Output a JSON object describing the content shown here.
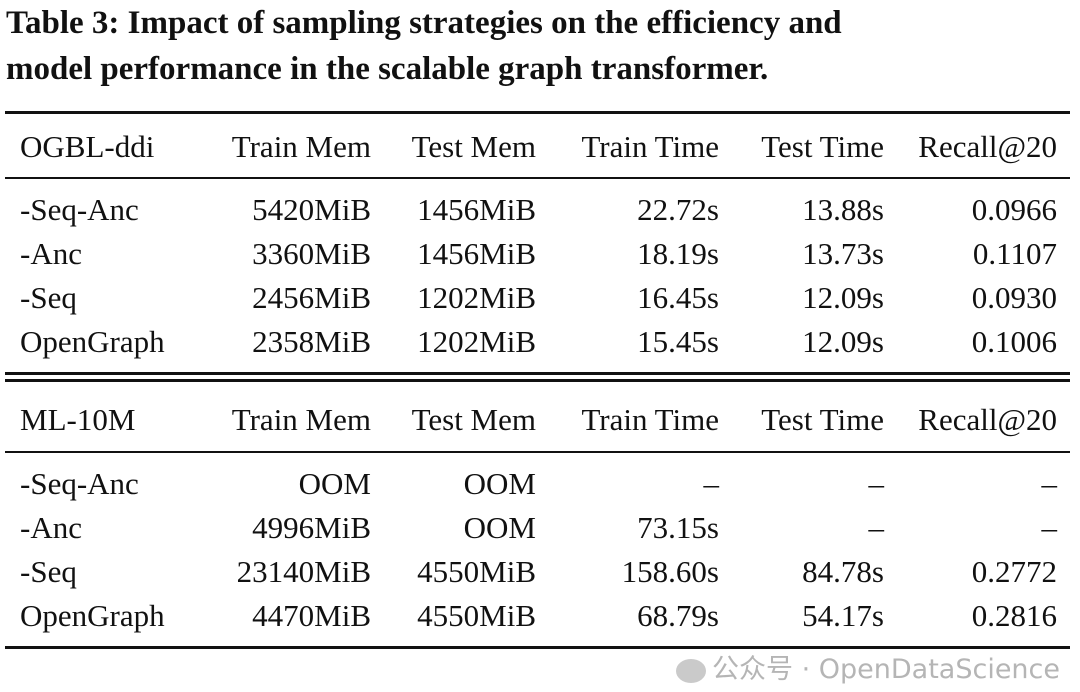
{
  "caption": {
    "line1": "Table 3: Impact of sampling strategies on the efficiency and",
    "line2": "model performance in the scalable graph transformer."
  },
  "sections": [
    {
      "header": [
        "OGBL-ddi",
        "Train Mem",
        "Test Mem",
        "Train Time",
        "Test Time",
        "Recall@20"
      ],
      "rows": [
        [
          "-Seq-Anc",
          "5420MiB",
          "1456MiB",
          "22.72s",
          "13.88s",
          "0.0966"
        ],
        [
          "-Anc",
          "3360MiB",
          "1456MiB",
          "18.19s",
          "13.73s",
          "0.1107"
        ],
        [
          "-Seq",
          "2456MiB",
          "1202MiB",
          "16.45s",
          "12.09s",
          "0.0930"
        ],
        [
          "OpenGraph",
          "2358MiB",
          "1202MiB",
          "15.45s",
          "12.09s",
          "0.1006"
        ]
      ]
    },
    {
      "header": [
        "ML-10M",
        "Train Mem",
        "Test Mem",
        "Train Time",
        "Test Time",
        "Recall@20"
      ],
      "rows": [
        [
          "-Seq-Anc",
          "OOM",
          "OOM",
          "–",
          "–",
          "–"
        ],
        [
          "-Anc",
          "4996MiB",
          "OOM",
          "73.15s",
          "–",
          "–"
        ],
        [
          "-Seq",
          "23140MiB",
          "4550MiB",
          "158.60s",
          "84.78s",
          "0.2772"
        ],
        [
          "OpenGraph",
          "4470MiB",
          "4550MiB",
          "68.79s",
          "54.17s",
          "0.2816"
        ]
      ]
    }
  ],
  "watermark": "公众号 · OpenDataScience"
}
